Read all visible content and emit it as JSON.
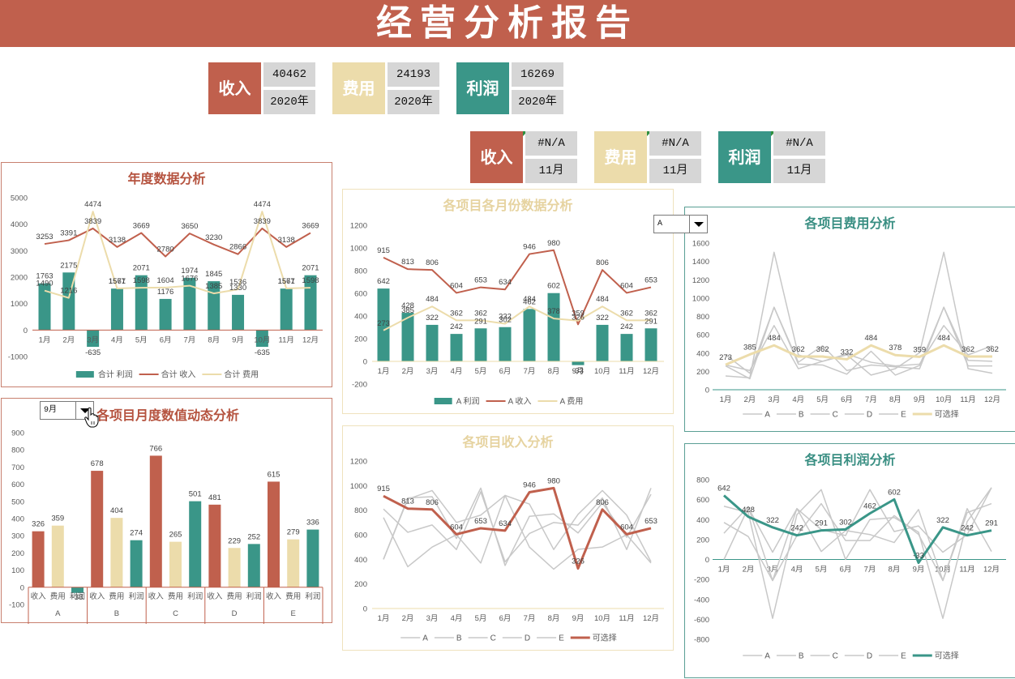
{
  "header": {
    "title": "经营分析报告"
  },
  "kpi_annual": [
    {
      "label": "收入",
      "value": "40462",
      "period": "2020年",
      "color": "#c0604d"
    },
    {
      "label": "费用",
      "value": "24193",
      "period": "2020年",
      "color": "#ecdcab"
    },
    {
      "label": "利润",
      "value": "16269",
      "period": "2020年",
      "color": "#3a9688"
    }
  ],
  "kpi_monthly": [
    {
      "label": "收入",
      "value": "#N/A",
      "period": "11月",
      "color": "#c0604d"
    },
    {
      "label": "费用",
      "value": "#N/A",
      "period": "11月",
      "color": "#ecdcab"
    },
    {
      "label": "利润",
      "value": "#N/A",
      "period": "11月",
      "color": "#3a9688"
    }
  ],
  "colors": {
    "revenue": "#c0604d",
    "expense": "#ecdcab",
    "profit": "#3a9688",
    "gray": "#c8c8c8"
  },
  "controls": {
    "month_select": {
      "value": "9月"
    },
    "project_select": {
      "value": "A"
    }
  },
  "chart_data": [
    {
      "type": "combo",
      "title": "年度数据分析",
      "categories": [
        "1月",
        "2月",
        "3月",
        "4月",
        "5月",
        "6月",
        "7月",
        "8月",
        "9月",
        "10月",
        "11月",
        "12月"
      ],
      "ylim": [
        -1000,
        5000
      ],
      "ystep": 1000,
      "series": [
        {
          "name": "合计 利润",
          "kind": "bar",
          "color": "#3a9688",
          "labels": true,
          "values": [
            1763,
            2175,
            -635,
            1567,
            2071,
            1176,
            1974,
            1845,
            1330,
            -635,
            1567,
            2071
          ]
        },
        {
          "name": "合计 收入",
          "kind": "line",
          "color": "#c0604d",
          "width": 2,
          "labels": true,
          "values": [
            3253,
            3391,
            3839,
            3138,
            3669,
            2780,
            3650,
            3230,
            2866,
            3839,
            3138,
            3669
          ]
        },
        {
          "name": "合计 费用",
          "kind": "line",
          "color": "#ecdcab",
          "width": 2,
          "labels": true,
          "values": [
            1490,
            1216,
            4474,
            1571,
            1598,
            1604,
            1676,
            1385,
            1536,
            4474,
            1571,
            1598
          ]
        }
      ]
    },
    {
      "type": "grouped-bar",
      "title": "各项目月度数值动态分析",
      "month": "9月",
      "groups": [
        "A",
        "B",
        "C",
        "D",
        "E"
      ],
      "subcategories": [
        "收入",
        "费用",
        "利润"
      ],
      "ylim": [
        -100,
        900
      ],
      "ystep": 100,
      "series": [
        {
          "name": "收入",
          "color": "#c0604d",
          "values": [
            326,
            678,
            766,
            481,
            615
          ]
        },
        {
          "name": "费用",
          "color": "#ecdcab",
          "values": [
            359,
            404,
            265,
            229,
            279
          ]
        },
        {
          "name": "利润",
          "color": "#3a9688",
          "values": [
            -33,
            274,
            501,
            252,
            336
          ]
        }
      ]
    },
    {
      "type": "combo",
      "title": "各项目各月份数据分析",
      "categories": [
        "1月",
        "2月",
        "3月",
        "4月",
        "5月",
        "6月",
        "7月",
        "8月",
        "9月",
        "10月",
        "11月",
        "12月"
      ],
      "ylim": [
        -200,
        1200
      ],
      "ystep": 200,
      "series": [
        {
          "name": "A 利润",
          "kind": "bar",
          "color": "#3a9688",
          "labels": true,
          "values": [
            642,
            428,
            322,
            242,
            291,
            302,
            462,
            602,
            -33,
            322,
            242,
            291
          ]
        },
        {
          "name": "A 收入",
          "kind": "line",
          "color": "#c0604d",
          "width": 2,
          "labels": true,
          "values": [
            915,
            813,
            806,
            604,
            653,
            634,
            946,
            980,
            326,
            806,
            604,
            653
          ]
        },
        {
          "name": "A 费用",
          "kind": "line",
          "color": "#ecdcab",
          "width": 2,
          "labels": true,
          "values": [
            273,
            385,
            484,
            362,
            362,
            332,
            484,
            378,
            359,
            484,
            362,
            362
          ]
        }
      ]
    },
    {
      "type": "line",
      "title": "各项目收入分析",
      "categories": [
        "1月",
        "2月",
        "3月",
        "4月",
        "5月",
        "6月",
        "7月",
        "8月",
        "9月",
        "10月",
        "11月",
        "12月"
      ],
      "ylim": [
        0,
        1200
      ],
      "ystep": 200,
      "series": [
        {
          "name": "A",
          "kind": "line",
          "color": "#c8c8c8",
          "width": 1.5,
          "values": [
            915,
            813,
            806,
            604,
            653,
            634,
            946,
            980,
            326,
            806,
            604,
            653
          ]
        },
        {
          "name": "B",
          "kind": "line",
          "color": "#c8c8c8",
          "width": 1.5,
          "values": [
            810,
            620,
            680,
            480,
            950,
            380,
            610,
            700,
            678,
            900,
            480,
            980
          ]
        },
        {
          "name": "C",
          "kind": "line",
          "color": "#c8c8c8",
          "width": 1.5,
          "values": [
            400,
            890,
            960,
            700,
            760,
            920,
            850,
            480,
            766,
            960,
            760,
            380
          ]
        },
        {
          "name": "D",
          "kind": "line",
          "color": "#c8c8c8",
          "width": 1.5,
          "values": [
            740,
            340,
            500,
            600,
            370,
            920,
            500,
            320,
            481,
            500,
            600,
            370
          ]
        },
        {
          "name": "E",
          "kind": "line",
          "color": "#c8c8c8",
          "width": 1.5,
          "values": [
            400,
            900,
            910,
            570,
            980,
            350,
            750,
            770,
            615,
            860,
            580,
            930
          ]
        },
        {
          "name": "可选择",
          "kind": "line",
          "color": "#c0604d",
          "width": 3,
          "labels": true,
          "values": [
            915,
            813,
            806,
            604,
            653,
            634,
            946,
            980,
            326,
            806,
            604,
            653
          ]
        }
      ]
    },
    {
      "type": "line",
      "title": "各项目费用分析",
      "categories": [
        "1月",
        "2月",
        "3月",
        "4月",
        "5月",
        "6月",
        "7月",
        "8月",
        "9月",
        "10月",
        "11月",
        "12月"
      ],
      "ylim": [
        0,
        1600
      ],
      "ystep": 200,
      "series": [
        {
          "name": "A",
          "kind": "line",
          "color": "#c8c8c8",
          "width": 1.5,
          "values": [
            273,
            385,
            484,
            362,
            362,
            332,
            484,
            378,
            359,
            484,
            362,
            362
          ]
        },
        {
          "name": "B",
          "kind": "line",
          "color": "#c8c8c8",
          "width": 1.5,
          "values": [
            150,
            130,
            1500,
            380,
            310,
            380,
            160,
            230,
            404,
            1500,
            230,
            180
          ]
        },
        {
          "name": "C",
          "kind": "line",
          "color": "#c8c8c8",
          "width": 1.5,
          "values": [
            380,
            180,
            900,
            280,
            270,
            170,
            420,
            160,
            265,
            900,
            320,
            310
          ]
        },
        {
          "name": "D",
          "kind": "line",
          "color": "#c8c8c8",
          "width": 1.5,
          "values": [
            260,
            120,
            900,
            300,
            480,
            210,
            270,
            250,
            229,
            900,
            260,
            260
          ]
        },
        {
          "name": "E",
          "kind": "line",
          "color": "#c8c8c8",
          "width": 1.5,
          "values": [
            270,
            210,
            700,
            230,
            310,
            390,
            300,
            260,
            279,
            700,
            380,
            480
          ]
        },
        {
          "name": "可选择",
          "kind": "line",
          "color": "#ecdcab",
          "width": 3,
          "labels": true,
          "values": [
            273,
            385,
            484,
            362,
            362,
            332,
            484,
            378,
            359,
            484,
            362,
            362
          ]
        }
      ]
    },
    {
      "type": "line",
      "title": "各项目利润分析",
      "categories": [
        "1月",
        "2月",
        "3月",
        "4月",
        "5月",
        "6月",
        "7月",
        "8月",
        "9月",
        "10月",
        "11月",
        "12月"
      ],
      "ylim": [
        -800,
        800
      ],
      "ystep": 200,
      "series": [
        {
          "name": "A",
          "kind": "line",
          "color": "#c8c8c8",
          "width": 1.5,
          "values": [
            642,
            428,
            322,
            242,
            291,
            302,
            462,
            602,
            -33,
            322,
            242,
            291
          ]
        },
        {
          "name": "B",
          "kind": "line",
          "color": "#c8c8c8",
          "width": 1.5,
          "values": [
            534,
            470,
            -590,
            450,
            700,
            0,
            400,
            420,
            274,
            -590,
            380,
            720
          ]
        },
        {
          "name": "C",
          "kind": "line",
          "color": "#c8c8c8",
          "width": 1.5,
          "values": [
            371,
            230,
            -211,
            510,
            80,
            290,
            250,
            170,
            501,
            -211,
            510,
            80
          ]
        },
        {
          "name": "D",
          "kind": "line",
          "color": "#c8c8c8",
          "width": 1.5,
          "values": [
            263,
            530,
            -211,
            240,
            560,
            190,
            190,
            440,
            252,
            -211,
            470,
            560
          ]
        },
        {
          "name": "E",
          "kind": "line",
          "color": "#c8c8c8",
          "width": 1.5,
          "values": [
            0,
            520,
            73,
            510,
            300,
            240,
            700,
            280,
            336,
            73,
            250,
            720
          ]
        },
        {
          "name": "可选择",
          "kind": "line",
          "color": "#3a9688",
          "width": 3,
          "labels": true,
          "values": [
            642,
            428,
            322,
            242,
            291,
            302,
            462,
            602,
            -33,
            322,
            242,
            291
          ]
        }
      ]
    }
  ]
}
